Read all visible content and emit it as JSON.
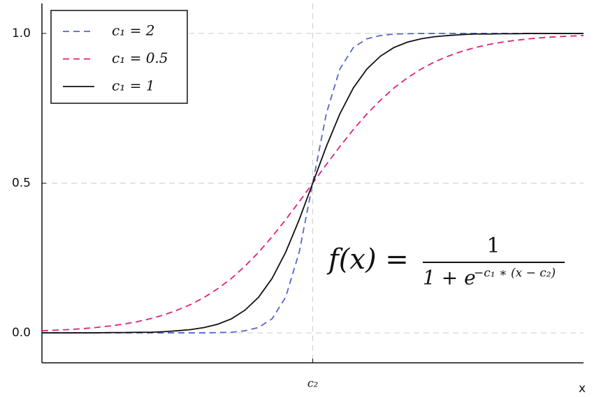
{
  "chart_data": {
    "type": "line",
    "x": [
      -10,
      -9.5,
      -9,
      -8.5,
      -8,
      -7.5,
      -7,
      -6.5,
      -6,
      -5.5,
      -5,
      -4.5,
      -4,
      -3.5,
      -3,
      -2.5,
      -2,
      -1.5,
      -1,
      -0.5,
      0,
      0.5,
      1,
      1.5,
      2,
      2.5,
      3,
      3.5,
      4,
      4.5,
      5,
      5.5,
      6,
      6.5,
      7,
      7.5,
      8,
      8.5,
      9,
      9.5,
      10
    ],
    "series": [
      {
        "name": "c₁ = 2",
        "color": "#5566cc",
        "linestyle": "dashed",
        "values": [
          0,
          0,
          0,
          0,
          0,
          0,
          0,
          0,
          0,
          0,
          0,
          0,
          0,
          0.001,
          0.002,
          0.007,
          0.018,
          0.047,
          0.119,
          0.269,
          0.5,
          0.731,
          0.881,
          0.953,
          0.982,
          0.993,
          0.998,
          0.999,
          1,
          1,
          1,
          1,
          1,
          1,
          1,
          1,
          1,
          1,
          1,
          1,
          1
        ]
      },
      {
        "name": "c₁ = 0.5",
        "color": "#e0207a",
        "linestyle": "dashed",
        "values": [
          0.007,
          0.009,
          0.011,
          0.014,
          0.018,
          0.023,
          0.029,
          0.037,
          0.047,
          0.06,
          0.076,
          0.095,
          0.119,
          0.148,
          0.182,
          0.223,
          0.269,
          0.321,
          0.378,
          0.438,
          0.5,
          0.562,
          0.622,
          0.679,
          0.731,
          0.777,
          0.818,
          0.852,
          0.881,
          0.905,
          0.924,
          0.94,
          0.953,
          0.963,
          0.971,
          0.977,
          0.982,
          0.986,
          0.989,
          0.991,
          0.993
        ]
      },
      {
        "name": "c₁ = 1",
        "color": "#111111",
        "linestyle": "solid",
        "values": [
          0,
          0,
          0,
          0,
          0,
          0.001,
          0.001,
          0.002,
          0.002,
          0.004,
          0.007,
          0.011,
          0.018,
          0.029,
          0.047,
          0.076,
          0.119,
          0.182,
          0.269,
          0.378,
          0.5,
          0.622,
          0.731,
          0.818,
          0.881,
          0.924,
          0.953,
          0.971,
          0.982,
          0.989,
          0.993,
          0.996,
          0.998,
          0.998,
          0.999,
          0.999,
          1,
          1,
          1,
          1,
          1
        ]
      }
    ],
    "x_label": "x",
    "xlim": [
      -10,
      10
    ],
    "xticks": [
      {
        "value": 0,
        "label": "c₂"
      }
    ],
    "ylim": [
      -0.1,
      1.1
    ],
    "yticks": [
      {
        "value": 0,
        "label": "0.0"
      },
      0.5,
      {
        "value": 1,
        "label": "1.0"
      }
    ],
    "grid": true,
    "legend": "upper left",
    "annotation": {
      "lhs": "f(x) =",
      "numerator": "1",
      "denominator": "1 + e",
      "exponent": "−c₁ ∗ (x − c₂)"
    }
  }
}
